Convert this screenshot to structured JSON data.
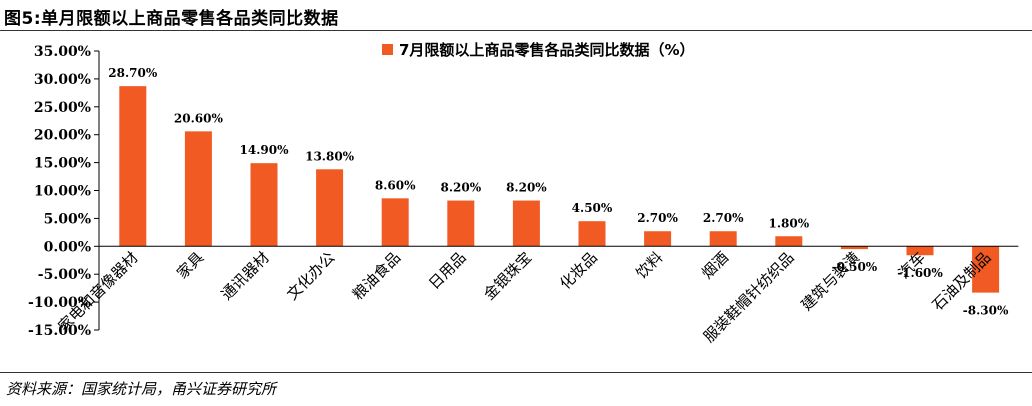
{
  "figure": {
    "title": "图5:单月限额以上商品零售各品类同比数据",
    "source": "资料来源：国家统计局，甬兴证券研究所"
  },
  "chart_data": {
    "type": "bar",
    "categories": [
      "家电和音像器材",
      "家具",
      "通讯器材",
      "文化办公",
      "粮油食品",
      "日用品",
      "金银珠宝",
      "化妆品",
      "饮料",
      "烟酒",
      "服装鞋帽针纺织品",
      "建筑与装潢",
      "汽车",
      "石油及制品"
    ],
    "series": [
      {
        "name": "7月限额以上商品零售各品类同比数据（%）",
        "values": [
          28.7,
          20.6,
          14.9,
          13.8,
          8.6,
          8.2,
          8.2,
          4.5,
          2.7,
          2.7,
          1.8,
          -0.5,
          -1.6,
          -8.3
        ],
        "labels": [
          "28.70%",
          "20.60%",
          "14.90%",
          "13.80%",
          "8.60%",
          "8.20%",
          "8.20%",
          "4.50%",
          "2.70%",
          "2.70%",
          "1.80%",
          "-0.50%",
          "-1.60%",
          "-8.30%"
        ]
      }
    ],
    "ylim": [
      -15,
      35
    ],
    "yticks": [
      35,
      30,
      25,
      20,
      15,
      10,
      5,
      0,
      -5,
      -10,
      -15
    ],
    "ytick_labels": [
      "35.00%",
      "30.00%",
      "25.00%",
      "20.00%",
      "15.00%",
      "10.00%",
      "5.00%",
      "0.00%",
      "-5.00%",
      "-10.00%",
      "-15.00%"
    ],
    "xlabel": "",
    "ylabel": "",
    "grid": false,
    "legend_position": "top-center",
    "bar_color": "#F15A22"
  }
}
